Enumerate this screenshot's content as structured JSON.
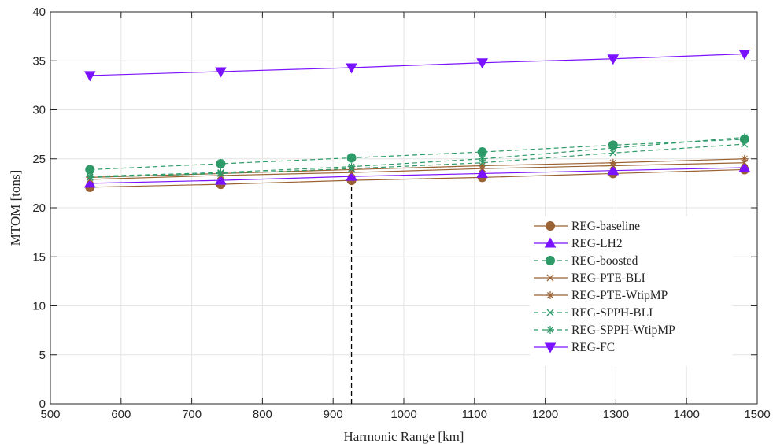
{
  "chart_data": {
    "type": "line",
    "xlabel": "Harmonic Range [km]",
    "ylabel": "MTOM [tons]",
    "xlim": [
      500,
      1500
    ],
    "ylim": [
      0,
      40
    ],
    "xticks": [
      500,
      600,
      700,
      800,
      900,
      1000,
      1100,
      1200,
      1300,
      1400,
      1500
    ],
    "yticks": [
      0,
      5,
      10,
      15,
      20,
      25,
      30,
      35,
      40
    ],
    "grid": true,
    "legend_position": "lower-right",
    "x": [
      556,
      741,
      926,
      1111,
      1296,
      1482
    ],
    "reference_line": {
      "x": 926,
      "y_from": 0,
      "y_to": 22.8,
      "style": "dashed",
      "color": "#000000"
    },
    "series": [
      {
        "name": "REG-baseline",
        "values": [
          22.1,
          22.4,
          22.8,
          23.1,
          23.5,
          23.9
        ],
        "color": "#9a6233",
        "marker": "circle",
        "dash": "solid"
      },
      {
        "name": "REG-LH2",
        "values": [
          22.5,
          22.8,
          23.2,
          23.5,
          23.8,
          24.1
        ],
        "color": "#7a12ff",
        "marker": "triangle-up",
        "dash": "solid"
      },
      {
        "name": "REG-boosted",
        "values": [
          23.9,
          24.5,
          25.1,
          25.7,
          26.4,
          27.0
        ],
        "color": "#2e9a68",
        "marker": "circle",
        "dash": "dashed"
      },
      {
        "name": "REG-PTE-BLI",
        "values": [
          22.9,
          23.3,
          23.6,
          24.0,
          24.3,
          24.6
        ],
        "color": "#9a6233",
        "marker": "x",
        "dash": "solid"
      },
      {
        "name": "REG-PTE-WtipMP",
        "values": [
          23.1,
          23.5,
          23.9,
          24.3,
          24.6,
          25.0
        ],
        "color": "#9a6233",
        "marker": "star",
        "dash": "solid"
      },
      {
        "name": "REG-SPPH-BLI",
        "values": [
          23.1,
          23.5,
          24.0,
          24.6,
          25.6,
          26.5
        ],
        "color": "#2e9a68",
        "marker": "x",
        "dash": "dashed"
      },
      {
        "name": "REG-SPPH-WtipMP",
        "values": [
          23.2,
          23.6,
          24.2,
          25.0,
          26.1,
          27.2
        ],
        "color": "#2e9a68",
        "marker": "star",
        "dash": "dashed"
      },
      {
        "name": "REG-FC",
        "values": [
          33.5,
          33.9,
          34.3,
          34.8,
          35.2,
          35.7
        ],
        "color": "#7a12ff",
        "marker": "triangle-down",
        "dash": "solid"
      }
    ]
  }
}
